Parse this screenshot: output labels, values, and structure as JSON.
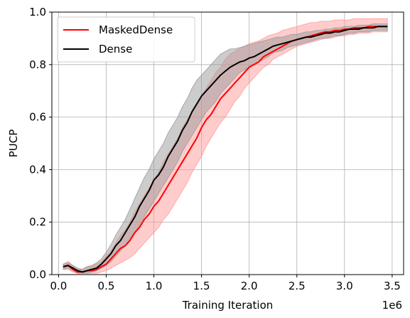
{
  "chart_data": {
    "type": "line",
    "title": "",
    "xlabel": "Training Iteration",
    "ylabel": "PUCP",
    "x_offset_label": "1e6",
    "xlim": [
      -0.07,
      3.62
    ],
    "ylim": [
      0.0,
      1.0
    ],
    "xticks": [
      "0.0",
      "0.5",
      "1.0",
      "1.5",
      "2.0",
      "2.5",
      "3.0",
      "3.5"
    ],
    "yticks": [
      "0.0",
      "0.2",
      "0.4",
      "0.6",
      "0.8",
      "1.0"
    ],
    "grid": true,
    "legend_position": "top-left",
    "x": [
      0.05,
      0.1,
      0.15,
      0.2,
      0.25,
      0.3,
      0.35,
      0.4,
      0.45,
      0.5,
      0.55,
      0.6,
      0.65,
      0.7,
      0.75,
      0.8,
      0.85,
      0.9,
      0.95,
      1.0,
      1.05,
      1.1,
      1.15,
      1.2,
      1.25,
      1.3,
      1.35,
      1.4,
      1.45,
      1.5,
      1.55,
      1.6,
      1.65,
      1.7,
      1.75,
      1.8,
      1.85,
      1.9,
      1.95,
      2.0,
      2.05,
      2.1,
      2.15,
      2.2,
      2.25,
      2.3,
      2.35,
      2.4,
      2.45,
      2.5,
      2.55,
      2.6,
      2.65,
      2.7,
      2.75,
      2.8,
      2.85,
      2.9,
      2.95,
      3.0,
      3.05,
      3.1,
      3.15,
      3.2,
      3.25,
      3.3,
      3.35,
      3.4,
      3.45
    ],
    "series": [
      {
        "name": "MaskedDense",
        "color": "#ff0000",
        "band_color": "#ff9999",
        "values": [
          0.03,
          0.035,
          0.02,
          0.01,
          0.01,
          0.015,
          0.015,
          0.02,
          0.03,
          0.04,
          0.06,
          0.08,
          0.1,
          0.11,
          0.13,
          0.16,
          0.18,
          0.21,
          0.23,
          0.26,
          0.28,
          0.31,
          0.34,
          0.37,
          0.4,
          0.43,
          0.46,
          0.49,
          0.52,
          0.56,
          0.59,
          0.61,
          0.64,
          0.67,
          0.69,
          0.71,
          0.73,
          0.75,
          0.77,
          0.79,
          0.8,
          0.81,
          0.83,
          0.84,
          0.85,
          0.86,
          0.87,
          0.88,
          0.89,
          0.895,
          0.9,
          0.905,
          0.91,
          0.915,
          0.92,
          0.925,
          0.925,
          0.93,
          0.93,
          0.935,
          0.935,
          0.94,
          0.94,
          0.94,
          0.945,
          0.945,
          0.945,
          0.945,
          0.945
        ],
        "lower": [
          0.02,
          0.02,
          0.01,
          0.005,
          0.005,
          0.005,
          0.005,
          0.005,
          0.01,
          0.015,
          0.025,
          0.035,
          0.045,
          0.055,
          0.065,
          0.08,
          0.1,
          0.12,
          0.14,
          0.16,
          0.18,
          0.21,
          0.23,
          0.26,
          0.29,
          0.32,
          0.35,
          0.39,
          0.42,
          0.45,
          0.49,
          0.52,
          0.55,
          0.58,
          0.6,
          0.63,
          0.66,
          0.68,
          0.71,
          0.73,
          0.75,
          0.77,
          0.79,
          0.8,
          0.82,
          0.83,
          0.84,
          0.85,
          0.86,
          0.87,
          0.875,
          0.88,
          0.885,
          0.89,
          0.895,
          0.9,
          0.9,
          0.905,
          0.91,
          0.91,
          0.915,
          0.915,
          0.92,
          0.92,
          0.92,
          0.925,
          0.925,
          0.925,
          0.925
        ],
        "upper": [
          0.04,
          0.05,
          0.035,
          0.02,
          0.02,
          0.03,
          0.03,
          0.04,
          0.05,
          0.07,
          0.09,
          0.12,
          0.15,
          0.17,
          0.2,
          0.24,
          0.27,
          0.3,
          0.33,
          0.36,
          0.39,
          0.43,
          0.46,
          0.49,
          0.52,
          0.56,
          0.59,
          0.62,
          0.65,
          0.68,
          0.71,
          0.74,
          0.77,
          0.79,
          0.82,
          0.84,
          0.85,
          0.86,
          0.87,
          0.88,
          0.885,
          0.89,
          0.9,
          0.91,
          0.915,
          0.92,
          0.93,
          0.935,
          0.94,
          0.945,
          0.95,
          0.955,
          0.96,
          0.96,
          0.965,
          0.965,
          0.965,
          0.97,
          0.97,
          0.97,
          0.97,
          0.975,
          0.975,
          0.975,
          0.975,
          0.975,
          0.975,
          0.975,
          0.975
        ]
      },
      {
        "name": "Dense",
        "color": "#000000",
        "band_color": "#999999",
        "values": [
          0.03,
          0.035,
          0.025,
          0.015,
          0.01,
          0.015,
          0.02,
          0.025,
          0.04,
          0.06,
          0.08,
          0.11,
          0.13,
          0.16,
          0.19,
          0.22,
          0.26,
          0.29,
          0.32,
          0.36,
          0.38,
          0.41,
          0.45,
          0.48,
          0.51,
          0.55,
          0.58,
          0.62,
          0.65,
          0.68,
          0.7,
          0.72,
          0.74,
          0.76,
          0.775,
          0.79,
          0.8,
          0.81,
          0.815,
          0.825,
          0.83,
          0.84,
          0.85,
          0.86,
          0.87,
          0.875,
          0.88,
          0.885,
          0.89,
          0.895,
          0.9,
          0.905,
          0.905,
          0.91,
          0.915,
          0.92,
          0.92,
          0.925,
          0.925,
          0.93,
          0.935,
          0.935,
          0.935,
          0.94,
          0.94,
          0.94,
          0.945,
          0.945,
          0.945
        ],
        "lower": [
          0.02,
          0.025,
          0.015,
          0.005,
          0.005,
          0.005,
          0.01,
          0.015,
          0.025,
          0.035,
          0.05,
          0.07,
          0.09,
          0.11,
          0.14,
          0.16,
          0.19,
          0.22,
          0.25,
          0.28,
          0.31,
          0.34,
          0.37,
          0.4,
          0.43,
          0.47,
          0.5,
          0.53,
          0.56,
          0.59,
          0.62,
          0.64,
          0.66,
          0.69,
          0.71,
          0.73,
          0.75,
          0.77,
          0.78,
          0.79,
          0.8,
          0.81,
          0.82,
          0.83,
          0.845,
          0.85,
          0.855,
          0.865,
          0.87,
          0.875,
          0.88,
          0.885,
          0.89,
          0.895,
          0.9,
          0.9,
          0.905,
          0.91,
          0.91,
          0.915,
          0.92,
          0.92,
          0.925,
          0.925,
          0.925,
          0.93,
          0.93,
          0.93,
          0.93
        ],
        "upper": [
          0.04,
          0.045,
          0.035,
          0.025,
          0.02,
          0.03,
          0.035,
          0.045,
          0.06,
          0.085,
          0.115,
          0.15,
          0.18,
          0.21,
          0.25,
          0.29,
          0.33,
          0.37,
          0.4,
          0.44,
          0.47,
          0.5,
          0.54,
          0.57,
          0.6,
          0.64,
          0.67,
          0.71,
          0.74,
          0.76,
          0.78,
          0.8,
          0.82,
          0.84,
          0.85,
          0.86,
          0.86,
          0.865,
          0.87,
          0.875,
          0.88,
          0.885,
          0.89,
          0.895,
          0.9,
          0.905,
          0.905,
          0.91,
          0.915,
          0.915,
          0.92,
          0.925,
          0.925,
          0.93,
          0.93,
          0.935,
          0.935,
          0.94,
          0.94,
          0.945,
          0.945,
          0.945,
          0.95,
          0.95,
          0.95,
          0.955,
          0.955,
          0.955,
          0.955
        ]
      }
    ]
  }
}
